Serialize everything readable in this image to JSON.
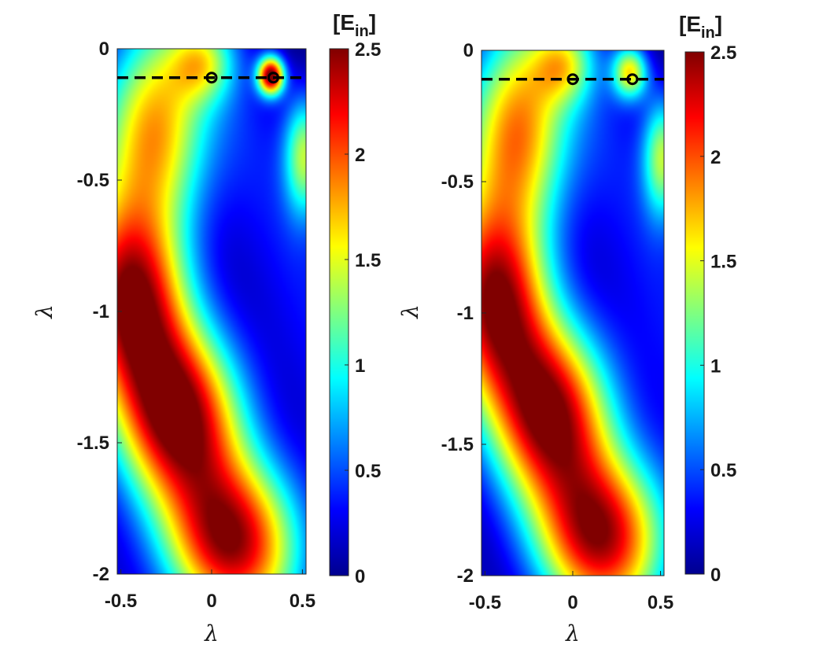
{
  "chart_data": [
    {
      "type": "heatmap",
      "xlabel": "λ",
      "ylabel": "λ",
      "xlim": [
        -0.52,
        0.52
      ],
      "ylim": [
        -2,
        0
      ],
      "xticks": [
        -0.5,
        0,
        0.5
      ],
      "xtick_labels": [
        "-0.5",
        "0",
        "0.5"
      ],
      "yticks": [
        0,
        -0.5,
        -1,
        -1.5,
        -2
      ],
      "ytick_labels": [
        "0",
        "-0.5",
        "-1",
        "-1.5",
        "-2"
      ],
      "colormap": "jet",
      "colorbar": {
        "title": "[E",
        "title_sub": "in",
        "title_end": "]",
        "range": [
          0,
          2.5
        ],
        "ticks": [
          0,
          0.5,
          1,
          1.5,
          2,
          2.5
        ],
        "tick_labels": [
          "0",
          "0.5",
          "1",
          "1.5",
          "2",
          "2.5"
        ]
      },
      "dashed_line_y": -0.11,
      "markers": [
        {
          "x": 0,
          "y": -0.11
        },
        {
          "x": 0.34,
          "y": -0.11
        }
      ],
      "field": {
        "comment_free": true,
        "background": 0.35,
        "blobs": [
          {
            "x": -0.32,
            "y": -0.3,
            "amp": 1.75,
            "sx": 0.2,
            "sy": 0.28
          },
          {
            "x": -0.45,
            "y": -0.95,
            "amp": 2.05,
            "sx": 0.22,
            "sy": 0.26
          },
          {
            "x": -0.18,
            "y": -1.4,
            "amp": 2.15,
            "sx": 0.25,
            "sy": 0.24
          },
          {
            "x": 0.12,
            "y": -1.88,
            "amp": 2.05,
            "sx": 0.27,
            "sy": 0.22
          },
          {
            "x": -0.05,
            "y": -0.05,
            "amp": 0.9,
            "sx": 0.12,
            "sy": 0.1
          },
          {
            "x": 0.33,
            "y": -0.1,
            "amp": 2.45,
            "sx": 0.05,
            "sy": 0.05
          },
          {
            "x": 0.52,
            "y": -0.4,
            "amp": 1.25,
            "sx": 0.08,
            "sy": 0.16
          }
        ]
      }
    },
    {
      "type": "heatmap",
      "xlabel": "λ",
      "ylabel": "λ",
      "xlim": [
        -0.52,
        0.52
      ],
      "ylim": [
        -2,
        0
      ],
      "xticks": [
        -0.5,
        0,
        0.5
      ],
      "xtick_labels": [
        "-0.5",
        "0",
        "0.5"
      ],
      "yticks": [
        0,
        -0.5,
        -1,
        -1.5,
        -2
      ],
      "ytick_labels": [
        "0",
        "-0.5",
        "-1",
        "-1.5",
        "-2"
      ],
      "colormap": "jet",
      "colorbar": {
        "title": "[E",
        "title_sub": "in",
        "title_end": "]",
        "range": [
          0,
          2.5
        ],
        "ticks": [
          0,
          0.5,
          1,
          1.5,
          2,
          2.5
        ],
        "tick_labels": [
          "0",
          "0.5",
          "1",
          "1.5",
          "2",
          "2.5"
        ]
      },
      "dashed_line_y": -0.11,
      "markers": [
        {
          "x": 0,
          "y": -0.11
        },
        {
          "x": 0.34,
          "y": -0.11
        }
      ],
      "field": {
        "background": 0.35,
        "blobs": [
          {
            "x": -0.32,
            "y": -0.3,
            "amp": 1.85,
            "sx": 0.2,
            "sy": 0.28
          },
          {
            "x": -0.45,
            "y": -0.95,
            "amp": 2.0,
            "sx": 0.22,
            "sy": 0.26
          },
          {
            "x": -0.12,
            "y": -1.38,
            "amp": 2.1,
            "sx": 0.25,
            "sy": 0.24
          },
          {
            "x": 0.18,
            "y": -1.85,
            "amp": 2.05,
            "sx": 0.27,
            "sy": 0.22
          },
          {
            "x": -0.05,
            "y": -0.05,
            "amp": 0.9,
            "sx": 0.12,
            "sy": 0.1
          },
          {
            "x": 0.33,
            "y": -0.08,
            "amp": 1.45,
            "sx": 0.07,
            "sy": 0.07
          },
          {
            "x": 0.52,
            "y": -0.4,
            "amp": 1.25,
            "sx": 0.08,
            "sy": 0.16
          }
        ]
      }
    }
  ]
}
